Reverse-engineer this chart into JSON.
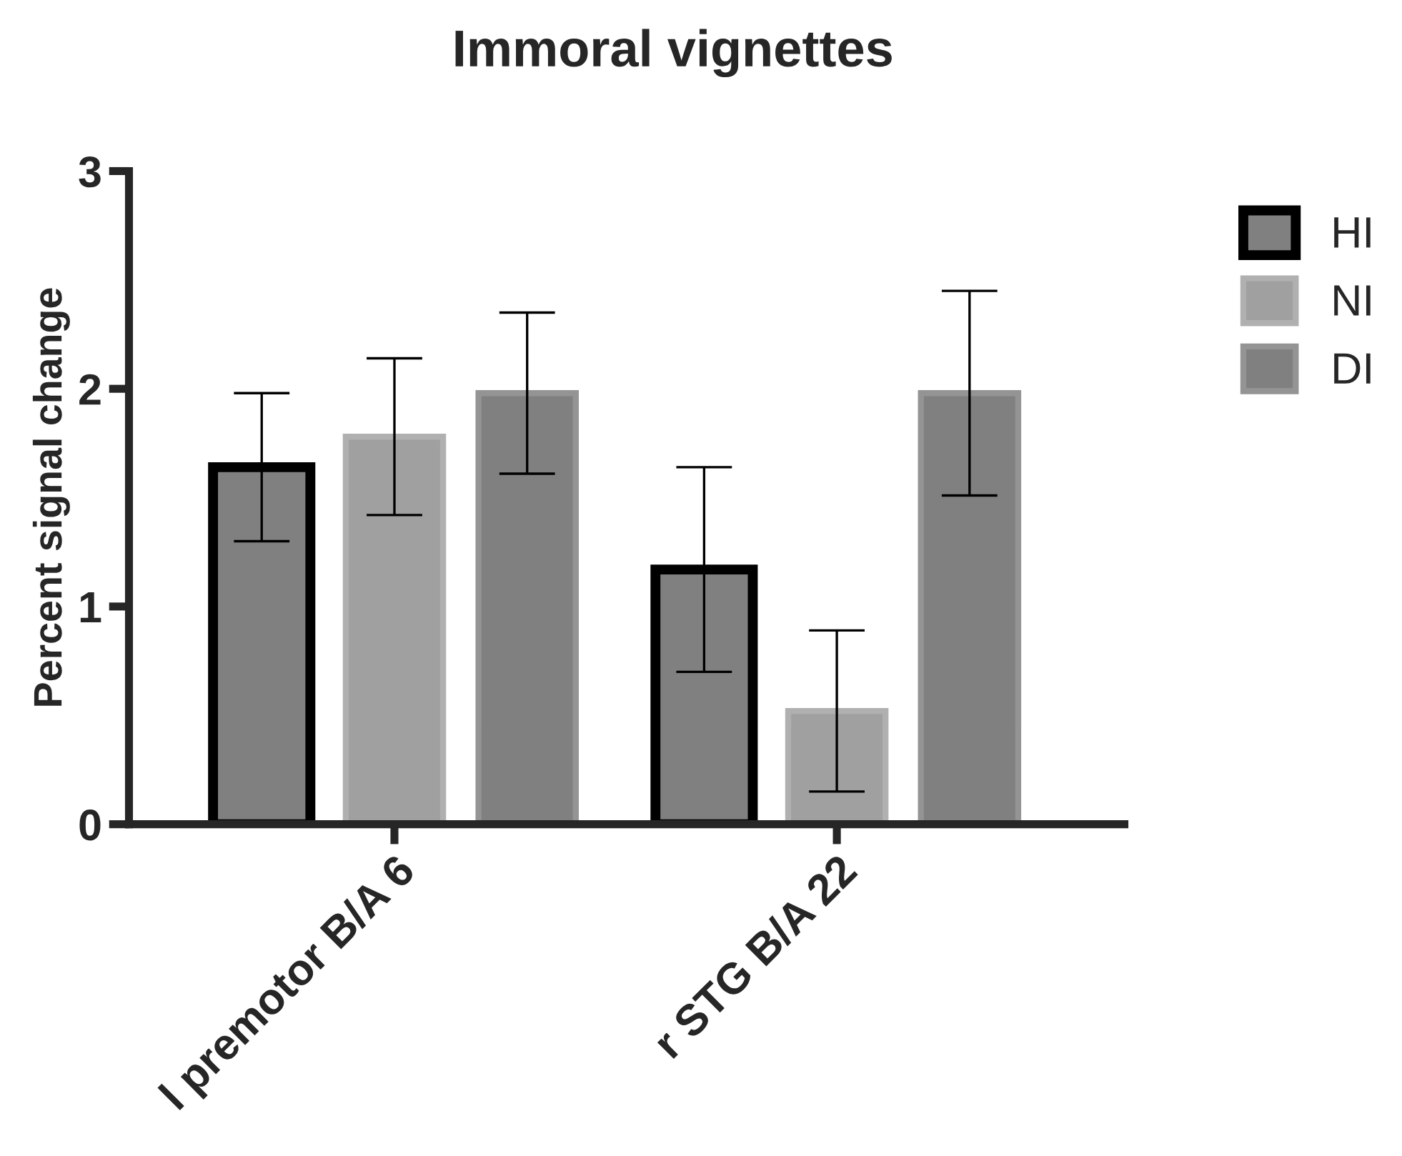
{
  "chart_data": {
    "type": "bar",
    "title": "Immoral vignettes",
    "ylabel": "Percent signal change",
    "categories": [
      "l premotor B/A 6",
      "r STG B/A 22"
    ],
    "series": [
      {
        "name": "HI",
        "color": "#808080",
        "values": [
          1.64,
          1.17
        ],
        "errors": [
          0.34,
          0.47
        ]
      },
      {
        "name": "NI",
        "color": "#a0a0a0",
        "values": [
          1.78,
          0.52
        ],
        "errors": [
          0.36,
          0.37
        ]
      },
      {
        "name": "DI",
        "color": "#808080",
        "values": [
          1.98,
          1.98
        ],
        "errors": [
          0.37,
          0.47
        ]
      }
    ],
    "ylim": [
      0,
      3
    ],
    "yticks": [
      0,
      1,
      2,
      3
    ],
    "grid": false,
    "legend": "right"
  }
}
